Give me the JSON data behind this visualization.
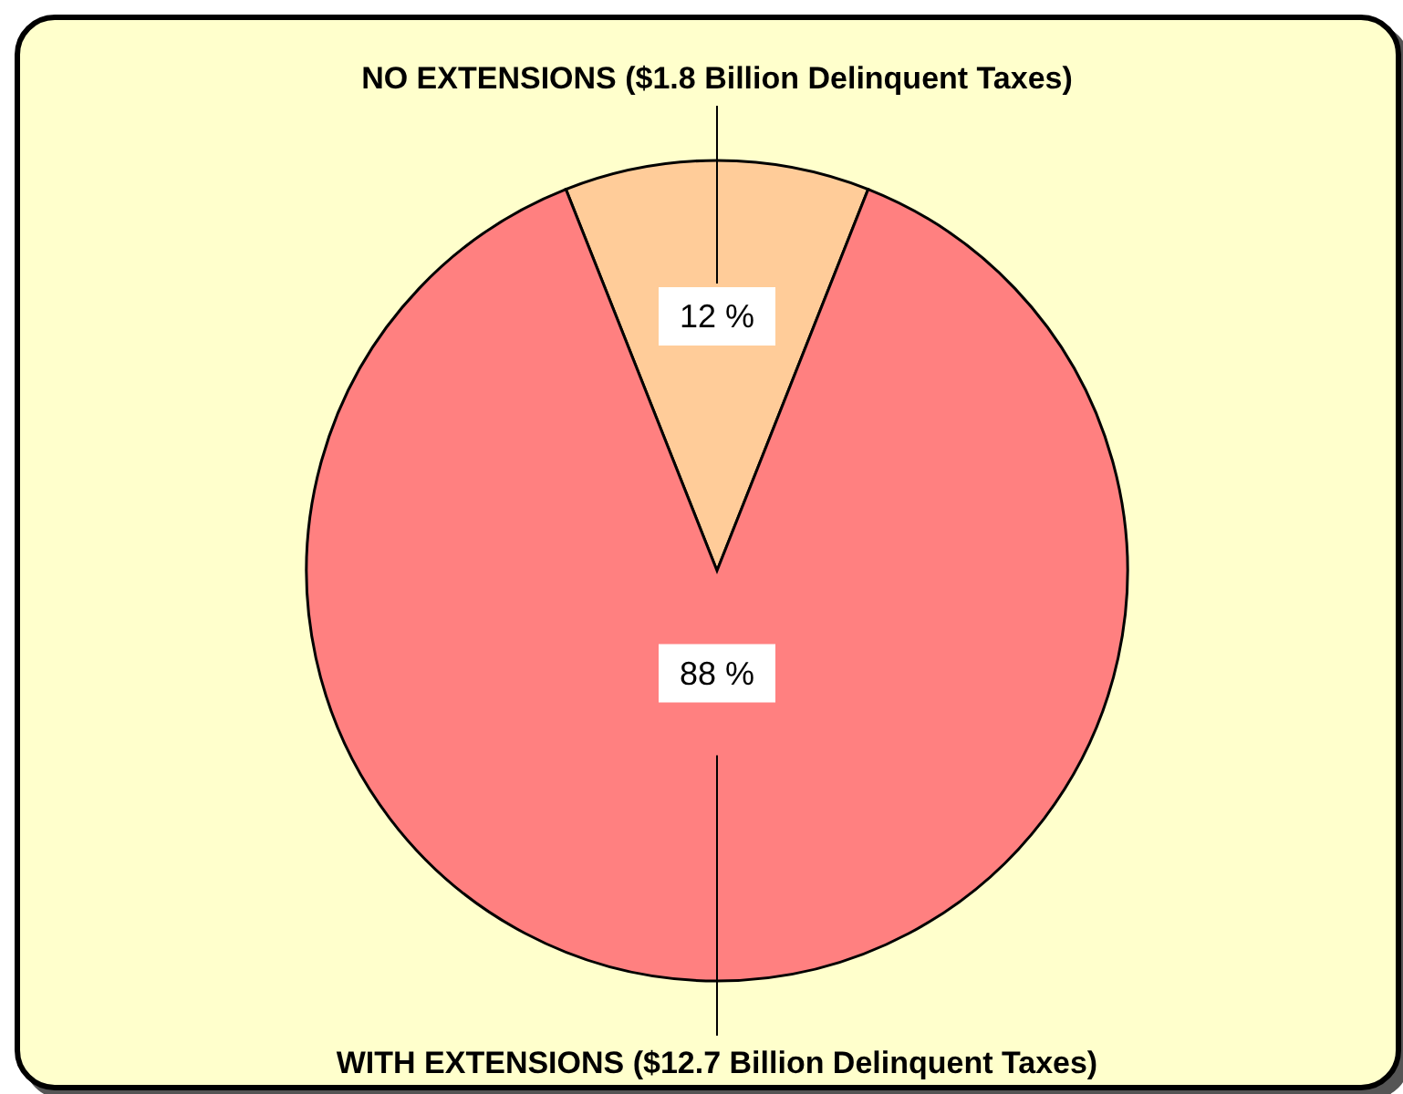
{
  "chart_data": {
    "type": "pie",
    "categories": [
      "NO EXTENSIONS ($1.8 Billion Delinquent Taxes)",
      "WITH EXTENSIONS ($12.7 Billion Delinquent Taxes)"
    ],
    "values": [
      12,
      88
    ],
    "colors": [
      "#ffcc99",
      "#ff8080"
    ],
    "value_labels": [
      "12 %",
      "88 %"
    ],
    "legend": false
  }
}
